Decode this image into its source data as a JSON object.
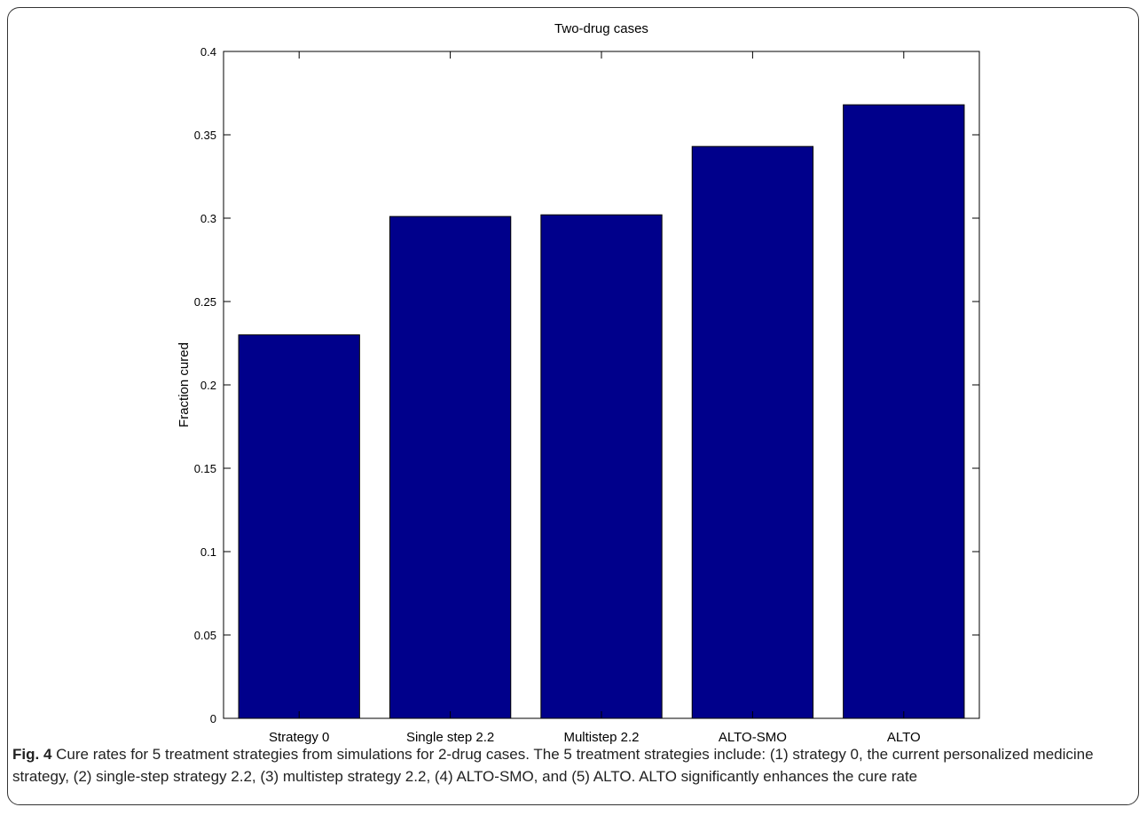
{
  "caption": {
    "label": "Fig. 4",
    "text": "Cure rates for 5 treatment strategies from simulations for 2-drug cases. The 5 treatment strategies include: (1) strategy 0, the current personalized medicine strategy, (2) single-step strategy 2.2, (3) multistep strategy 2.2, (4) ALTO-SMO, and (5) ALTO. ALTO significantly enhances the cure rate"
  },
  "chart_data": {
    "type": "bar",
    "title": "Two-drug cases",
    "xlabel": "",
    "ylabel": "Fraction cured",
    "categories": [
      "Strategy 0",
      "Single step 2.2",
      "Multistep 2.2",
      "ALTO-SMO",
      "ALTO"
    ],
    "values": [
      0.23,
      0.301,
      0.302,
      0.343,
      0.368
    ],
    "ylim": [
      0,
      0.4
    ],
    "yticks": [
      "0",
      "0.05",
      "0.1",
      "0.15",
      "0.2",
      "0.25",
      "0.3",
      "0.35",
      "0.4"
    ],
    "bar_color": "#00008B",
    "grid": false,
    "legend": "none"
  }
}
